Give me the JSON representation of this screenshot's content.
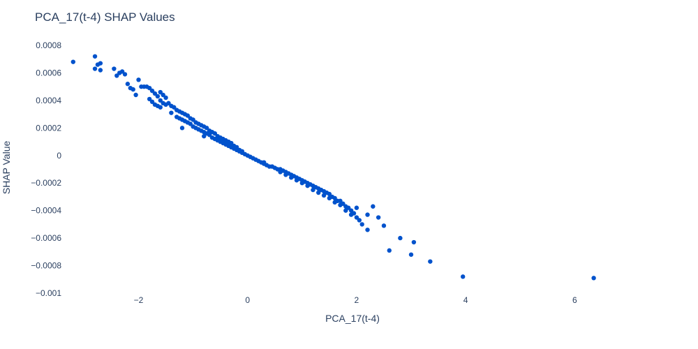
{
  "chart_data": {
    "type": "scatter",
    "title": "PCA_17(t-4) SHAP Values",
    "xlabel": "PCA_17(t-4)",
    "ylabel": "SHAP Value",
    "xlim": [
      -3.3,
      7.2
    ],
    "ylim": [
      -0.001,
      0.0008
    ],
    "x_ticks": [
      -2,
      0,
      2,
      4,
      6
    ],
    "x_tick_labels": [
      "−2",
      "0",
      "2",
      "4",
      "6"
    ],
    "y_ticks": [
      0.0008,
      0.0006,
      0.0004,
      0.0002,
      0,
      -0.0002,
      -0.0004,
      -0.0006,
      -0.0008,
      -0.001
    ],
    "y_tick_labels": [
      "0.0008",
      "0.0006",
      "0.0004",
      "0.0002",
      "0",
      "−0.0002",
      "−0.0004",
      "−0.0006",
      "−0.0008",
      "−0.001"
    ],
    "grid": false,
    "marker_color": "#0052CC",
    "points": [
      [
        -3.2,
        0.00068
      ],
      [
        -2.8,
        0.00072
      ],
      [
        -2.8,
        0.00063
      ],
      [
        -2.75,
        0.00066
      ],
      [
        -2.7,
        0.00067
      ],
      [
        -2.7,
        0.00062
      ],
      [
        -2.45,
        0.00063
      ],
      [
        -2.4,
        0.00058
      ],
      [
        -2.35,
        0.0006
      ],
      [
        -2.3,
        0.00061
      ],
      [
        -2.25,
        0.00059
      ],
      [
        -2.2,
        0.00052
      ],
      [
        -2.15,
        0.00049
      ],
      [
        -2.1,
        0.00048
      ],
      [
        -2.05,
        0.00044
      ],
      [
        -2.0,
        0.00055
      ],
      [
        -1.95,
        0.0005
      ],
      [
        -1.9,
        0.0005
      ],
      [
        -1.85,
        0.0005
      ],
      [
        -1.8,
        0.00049
      ],
      [
        -1.8,
        0.00041
      ],
      [
        -1.75,
        0.00047
      ],
      [
        -1.75,
        0.00039
      ],
      [
        -1.7,
        0.00045
      ],
      [
        -1.7,
        0.00037
      ],
      [
        -1.65,
        0.00043
      ],
      [
        -1.65,
        0.00036
      ],
      [
        -1.6,
        0.00046
      ],
      [
        -1.6,
        0.0004
      ],
      [
        -1.6,
        0.00035
      ],
      [
        -1.55,
        0.00044
      ],
      [
        -1.55,
        0.00038
      ],
      [
        -1.5,
        0.00042
      ],
      [
        -1.5,
        0.00037
      ],
      [
        -1.45,
        0.00038
      ],
      [
        -1.4,
        0.00036
      ],
      [
        -1.4,
        0.00031
      ],
      [
        -1.35,
        0.00035
      ],
      [
        -1.3,
        0.00033
      ],
      [
        -1.3,
        0.00028
      ],
      [
        -1.25,
        0.00032
      ],
      [
        -1.25,
        0.00027
      ],
      [
        -1.2,
        0.00031
      ],
      [
        -1.2,
        0.00026
      ],
      [
        -1.2,
        0.0002
      ],
      [
        -1.15,
        0.0003
      ],
      [
        -1.15,
        0.00025
      ],
      [
        -1.1,
        0.00029
      ],
      [
        -1.1,
        0.00024
      ],
      [
        -1.05,
        0.00027
      ],
      [
        -1.05,
        0.00023
      ],
      [
        -1.0,
        0.00026
      ],
      [
        -1.0,
        0.00021
      ],
      [
        -0.95,
        0.00024
      ],
      [
        -0.95,
        0.0002
      ],
      [
        -0.9,
        0.00023
      ],
      [
        -0.9,
        0.00019
      ],
      [
        -0.85,
        0.00022
      ],
      [
        -0.85,
        0.00018
      ],
      [
        -0.8,
        0.00021
      ],
      [
        -0.8,
        0.00017
      ],
      [
        -0.8,
        0.00014
      ],
      [
        -0.75,
        0.0002
      ],
      [
        -0.75,
        0.00016
      ],
      [
        -0.7,
        0.00018
      ],
      [
        -0.7,
        0.00015
      ],
      [
        -0.65,
        0.00017
      ],
      [
        -0.65,
        0.00013
      ],
      [
        -0.6,
        0.00016
      ],
      [
        -0.6,
        0.00012
      ],
      [
        -0.55,
        0.00014
      ],
      [
        -0.55,
        0.00011
      ],
      [
        -0.5,
        0.00013
      ],
      [
        -0.5,
        0.0001
      ],
      [
        -0.45,
        0.00012
      ],
      [
        -0.45,
        9e-05
      ],
      [
        -0.4,
        0.00011
      ],
      [
        -0.4,
        8e-05
      ],
      [
        -0.35,
        0.0001
      ],
      [
        -0.35,
        7e-05
      ],
      [
        -0.3,
        9e-05
      ],
      [
        -0.3,
        6e-05
      ],
      [
        -0.25,
        7e-05
      ],
      [
        -0.25,
        5e-05
      ],
      [
        -0.2,
        6e-05
      ],
      [
        -0.2,
        4e-05
      ],
      [
        -0.15,
        4e-05
      ],
      [
        -0.15,
        3e-05
      ],
      [
        -0.1,
        3e-05
      ],
      [
        -0.1,
        2e-05
      ],
      [
        -0.05,
        1e-05
      ],
      [
        0.0,
        0.0
      ],
      [
        0.05,
        -1e-05
      ],
      [
        0.1,
        -2e-05
      ],
      [
        0.15,
        -3e-05
      ],
      [
        0.2,
        -4e-05
      ],
      [
        0.25,
        -5e-05
      ],
      [
        0.3,
        -6e-05
      ],
      [
        0.3,
        -5e-05
      ],
      [
        0.35,
        -7e-05
      ],
      [
        0.4,
        -8e-05
      ],
      [
        0.45,
        -8e-05
      ],
      [
        0.5,
        -9e-05
      ],
      [
        0.55,
        -0.0001
      ],
      [
        0.6,
        -0.0001
      ],
      [
        0.6,
        -0.00012
      ],
      [
        0.65,
        -0.00011
      ],
      [
        0.7,
        -0.00012
      ],
      [
        0.7,
        -0.00014
      ],
      [
        0.75,
        -0.00013
      ],
      [
        0.8,
        -0.00014
      ],
      [
        0.8,
        -0.00016
      ],
      [
        0.85,
        -0.00015
      ],
      [
        0.9,
        -0.00016
      ],
      [
        0.9,
        -0.00018
      ],
      [
        0.95,
        -0.00017
      ],
      [
        1.0,
        -0.00018
      ],
      [
        1.0,
        -0.0002
      ],
      [
        1.05,
        -0.00019
      ],
      [
        1.1,
        -0.0002
      ],
      [
        1.1,
        -0.00022
      ],
      [
        1.15,
        -0.00021
      ],
      [
        1.2,
        -0.00022
      ],
      [
        1.2,
        -0.00025
      ],
      [
        1.25,
        -0.00023
      ],
      [
        1.3,
        -0.00024
      ],
      [
        1.3,
        -0.00027
      ],
      [
        1.35,
        -0.00025
      ],
      [
        1.4,
        -0.00026
      ],
      [
        1.4,
        -0.00029
      ],
      [
        1.45,
        -0.00027
      ],
      [
        1.5,
        -0.00028
      ],
      [
        1.5,
        -0.00031
      ],
      [
        1.55,
        -0.0003
      ],
      [
        1.6,
        -0.00031
      ],
      [
        1.6,
        -0.00034
      ],
      [
        1.65,
        -0.00033
      ],
      [
        1.7,
        -0.00033
      ],
      [
        1.7,
        -0.00036
      ],
      [
        1.75,
        -0.00035
      ],
      [
        1.8,
        -0.00037
      ],
      [
        1.8,
        -0.0004
      ],
      [
        1.85,
        -0.00038
      ],
      [
        1.9,
        -0.0004
      ],
      [
        1.9,
        -0.00043
      ],
      [
        1.95,
        -0.00042
      ],
      [
        2.0,
        -0.00038
      ],
      [
        2.0,
        -0.00045
      ],
      [
        2.05,
        -0.00047
      ],
      [
        2.1,
        -0.0005
      ],
      [
        2.2,
        -0.00054
      ],
      [
        2.2,
        -0.00043
      ],
      [
        2.3,
        -0.00037
      ],
      [
        2.4,
        -0.00045
      ],
      [
        2.5,
        -0.00051
      ],
      [
        2.6,
        -0.00069
      ],
      [
        2.8,
        -0.0006
      ],
      [
        3.0,
        -0.00072
      ],
      [
        3.05,
        -0.00063
      ],
      [
        3.35,
        -0.00077
      ],
      [
        3.95,
        -0.00088
      ],
      [
        6.35,
        -0.00089
      ]
    ]
  }
}
